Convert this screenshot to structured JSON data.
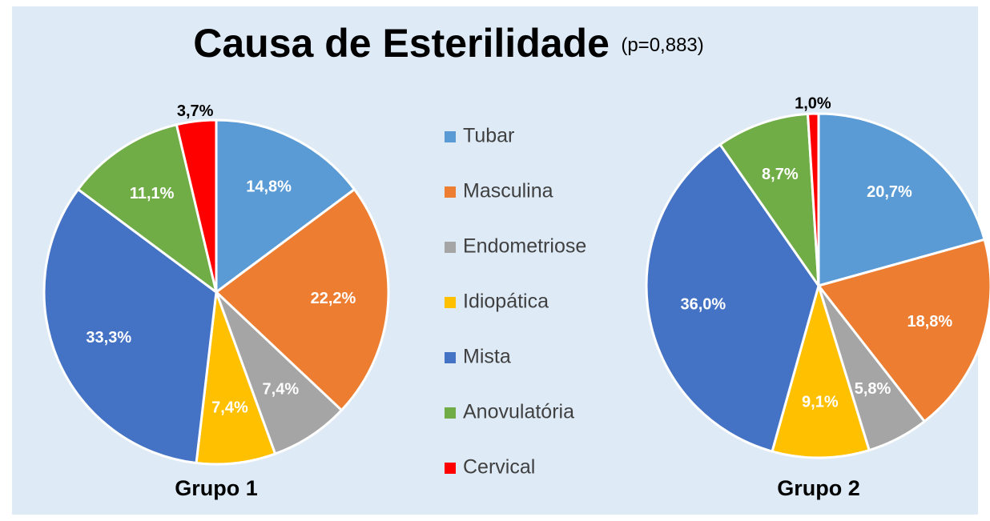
{
  "chart_data": {
    "type": "pie",
    "title": "Causa de Esterilidade",
    "subtitle": "(p=0,883)",
    "categories": [
      "Tubar",
      "Masculina",
      "Endometriose",
      "Idiopática",
      "Mista",
      "Anovulatória",
      "Cervical"
    ],
    "colors": [
      "#5b9bd5",
      "#ed7d31",
      "#a5a5a5",
      "#ffc000",
      "#4472c4",
      "#70ad47",
      "#ff0000"
    ],
    "series": [
      {
        "name": "Grupo 1",
        "values": [
          14.8,
          22.2,
          7.4,
          7.4,
          33.3,
          11.1,
          3.7
        ],
        "value_labels": [
          "14,8%",
          "22,2%",
          "7,4%",
          "7,4%",
          "33,3%",
          "11,1%",
          "3,7%"
        ]
      },
      {
        "name": "Grupo 2",
        "values": [
          20.7,
          18.8,
          5.8,
          9.1,
          36.0,
          8.7,
          1.0
        ],
        "value_labels": [
          "20,7%",
          "18,8%",
          "5,8%",
          "9,1%",
          "36,0%",
          "8,7%",
          "1,0%"
        ]
      }
    ]
  }
}
